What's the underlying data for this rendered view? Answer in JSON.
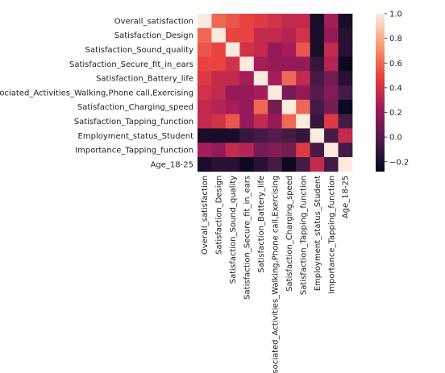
{
  "chart_data": {
    "type": "heatmap",
    "title": "",
    "xlabel": "",
    "ylabel": "",
    "row_labels": [
      "Overall_satisfaction",
      "Satisfaction_Design",
      "Satisfaction_Sound_quality",
      "Satisfaction_Secure_fit_in_ears",
      "Satisfaction_Battery_life",
      "Associated_Activities_Walking,Phone call,Exercising",
      "Satisfaction_Charging_speed",
      "Satisfaction_Tapping_function",
      "Employment_status_Student",
      "Importance_Tapping_function",
      "Age_18-25"
    ],
    "col_labels": [
      "Overall_satisfaction",
      "Satisfaction_Design",
      "Satisfaction_Sound_quality",
      "Satisfaction_Secure_fit_in_ears",
      "Satisfaction_Battery_life",
      "Associated_Activities_Walking,Phone call,Exercising",
      "Satisfaction_Charging_speed",
      "Satisfaction_Tapping_function",
      "Employment_status_Student",
      "Importance_Tapping_function",
      "Age_18-25"
    ],
    "values": [
      [
        1.0,
        0.6,
        0.55,
        0.5,
        0.45,
        0.4,
        0.35,
        0.35,
        -0.2,
        0.25,
        -0.2
      ],
      [
        0.6,
        1.0,
        0.5,
        0.5,
        0.35,
        0.35,
        0.3,
        0.4,
        -0.2,
        0.2,
        -0.15
      ],
      [
        0.55,
        0.5,
        1.0,
        0.4,
        0.35,
        0.2,
        0.25,
        0.55,
        -0.2,
        0.35,
        -0.15
      ],
      [
        0.5,
        0.5,
        0.4,
        1.0,
        0.25,
        0.2,
        0.2,
        0.2,
        -0.1,
        0.3,
        -0.25
      ],
      [
        0.45,
        0.35,
        0.35,
        0.25,
        1.0,
        0.25,
        0.6,
        0.35,
        -0.05,
        0.1,
        -0.15
      ],
      [
        0.4,
        0.35,
        0.2,
        0.2,
        0.25,
        1.0,
        0.1,
        0.2,
        0.0,
        0.15,
        -0.05
      ],
      [
        0.35,
        0.3,
        0.25,
        0.2,
        0.6,
        0.1,
        1.0,
        0.6,
        -0.05,
        0.1,
        -0.25
      ],
      [
        0.35,
        0.4,
        0.55,
        0.2,
        0.35,
        0.2,
        0.6,
        1.0,
        -0.1,
        0.45,
        -0.05
      ],
      [
        -0.2,
        -0.2,
        -0.2,
        -0.1,
        -0.05,
        0.0,
        -0.05,
        -0.1,
        1.0,
        -0.05,
        0.35
      ],
      [
        0.25,
        0.2,
        0.35,
        0.3,
        0.1,
        0.15,
        0.1,
        0.45,
        -0.05,
        1.0,
        -0.05
      ],
      [
        -0.2,
        -0.15,
        -0.15,
        -0.25,
        -0.15,
        -0.05,
        -0.25,
        -0.05,
        0.35,
        -0.05,
        1.0
      ]
    ],
    "vmin": -0.28,
    "vmax": 1.0,
    "colorbar_ticks": [
      1.0,
      0.8,
      0.6,
      0.4,
      0.2,
      0.0,
      -0.2
    ],
    "colorbar_tick_labels": [
      "1.0",
      "0.8",
      "0.6",
      "0.4",
      "0.2",
      "0.0",
      "−0.2"
    ],
    "colormap": "rocket",
    "colormap_stops": [
      "#03051a",
      "#4c1d4b",
      "#a11a5b",
      "#e83f3f",
      "#f69c73",
      "#faebdd"
    ],
    "grid": false,
    "legend_position": "right"
  }
}
